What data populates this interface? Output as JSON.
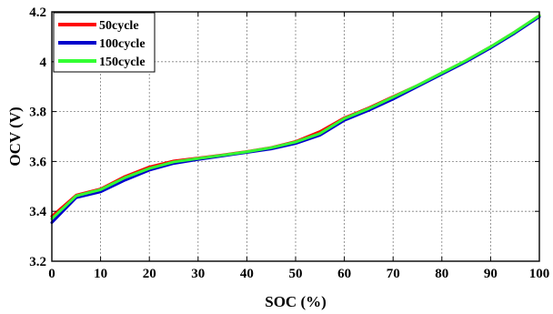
{
  "chart_data": {
    "type": "line",
    "title": "",
    "xlabel": "SOC (%)",
    "ylabel": "OCV (V)",
    "xlim": [
      0,
      100
    ],
    "ylim": [
      3.2,
      4.2
    ],
    "xticks": [
      0,
      10,
      20,
      30,
      40,
      50,
      60,
      70,
      80,
      90,
      100
    ],
    "yticks": [
      3.2,
      3.4,
      3.6,
      3.8,
      4.0,
      4.2
    ],
    "xtick_labels": [
      "0",
      "10",
      "20",
      "30",
      "40",
      "50",
      "60",
      "70",
      "80",
      "90",
      "100"
    ],
    "ytick_labels": [
      "3.2",
      "3.4",
      "3.6",
      "3.8",
      "4",
      "4.2"
    ],
    "grid": true,
    "legend_position": "top-left",
    "x": [
      0,
      5,
      10,
      15,
      20,
      25,
      30,
      35,
      40,
      45,
      50,
      55,
      60,
      65,
      70,
      75,
      80,
      85,
      90,
      95,
      100
    ],
    "series": [
      {
        "name": "50cycle",
        "color": "#ff0000",
        "values": [
          3.38,
          3.465,
          3.49,
          3.54,
          3.578,
          3.602,
          3.614,
          3.626,
          3.64,
          3.656,
          3.68,
          3.72,
          3.775,
          3.815,
          3.86,
          3.905,
          3.955,
          4.005,
          4.06,
          4.12,
          4.185
        ]
      },
      {
        "name": "100cycle",
        "color": "#0000cc",
        "values": [
          3.355,
          3.455,
          3.478,
          3.525,
          3.565,
          3.592,
          3.608,
          3.622,
          3.636,
          3.65,
          3.672,
          3.705,
          3.765,
          3.805,
          3.85,
          3.9,
          3.95,
          4.0,
          4.055,
          4.115,
          4.18
        ]
      },
      {
        "name": "150cycle",
        "color": "#33ff33",
        "values": [
          3.37,
          3.462,
          3.487,
          3.535,
          3.572,
          3.598,
          3.612,
          3.625,
          3.639,
          3.655,
          3.678,
          3.712,
          3.772,
          3.812,
          3.858,
          3.905,
          3.955,
          4.005,
          4.06,
          4.12,
          4.185
        ]
      }
    ]
  }
}
